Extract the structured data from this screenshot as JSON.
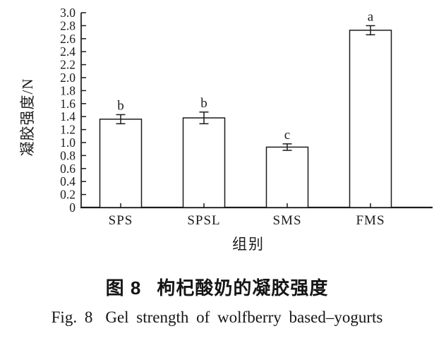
{
  "figure": {
    "captions": {
      "zh_label": "图 8",
      "zh_title": "枸杞酸奶的凝胶强度",
      "en_label": "Fig. 8",
      "en_title": "Gel strength of wolfberry based–yogurts"
    }
  },
  "chart_data": {
    "type": "bar",
    "categories": [
      "SPS",
      "SPSL",
      "SMS",
      "FMS"
    ],
    "values": [
      1.36,
      1.38,
      0.93,
      2.73
    ],
    "errors": [
      0.07,
      0.09,
      0.05,
      0.07
    ],
    "sig_letters": [
      "b",
      "b",
      "c",
      "a"
    ],
    "title": "",
    "xlabel": "组别",
    "ylabel": "凝胶强度/N",
    "ylim": [
      0,
      3.0
    ],
    "ytick_step": 0.2,
    "ytick_labels": [
      "0",
      "0.2",
      "0.4",
      "0.6",
      "0.8",
      "1.0",
      "1.2",
      "1.4",
      "1.6",
      "1.8",
      "2.0",
      "2.2",
      "2.4",
      "2.6",
      "2.8",
      "3.0"
    ],
    "grid": false,
    "legend": false,
    "bar_fill": "#ffffff",
    "stroke_color": "#1b1b1b"
  }
}
